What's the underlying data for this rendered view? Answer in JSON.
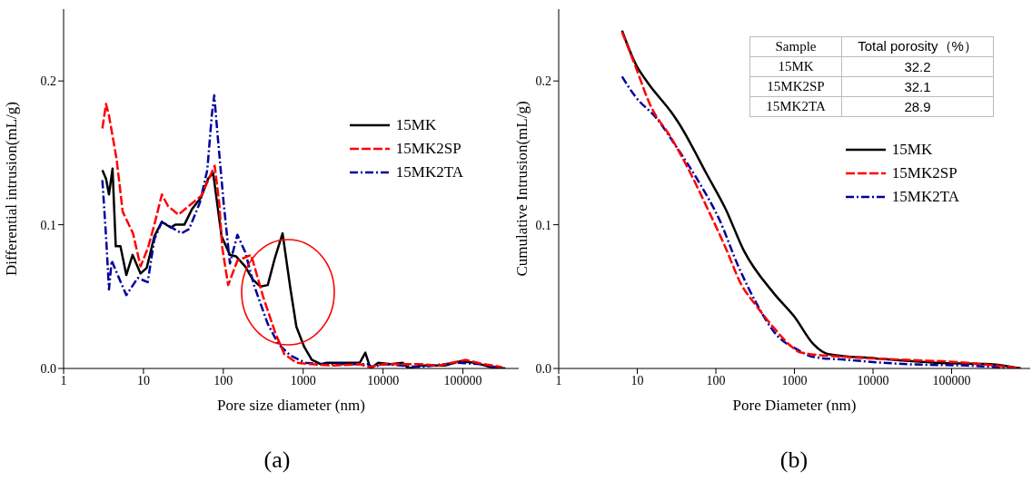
{
  "chart_data": [
    {
      "type": "line",
      "title": "(a)",
      "xlabel": "Pore size diameter (nm)",
      "ylabel": "Differential intrusion(mL/g)",
      "log": "x",
      "xlim": [
        1,
        500000
      ],
      "xticks": [
        1,
        10,
        100,
        1000,
        10000,
        100000
      ],
      "ylim": [
        0,
        0.25
      ],
      "yticks": [
        {
          "value": 0,
          "label": "0.0"
        },
        {
          "value": 0.1,
          "label": "0.1"
        },
        {
          "value": 0.2,
          "label": "0.2"
        }
      ],
      "legend": "top right",
      "series": [
        {
          "name": "15MK",
          "color": "#000000",
          "line_style": "solid",
          "x": [
            3.06,
            3.4,
            3.7,
            4.1,
            4.5,
            5.15,
            6.1,
            7.3,
            9.2,
            11,
            13.7,
            17,
            22,
            25,
            32.5,
            40.7,
            52.7,
            64.6,
            74.6,
            95,
            121,
            144,
            188,
            233,
            290,
            360,
            443,
            552,
            690,
            822,
            1030,
            1280,
            1660,
            1980,
            3050,
            3960,
            5120,
            6000,
            6950,
            8700,
            12400,
            17600,
            20800,
            29300,
            59500,
            92000,
            142000,
            218000,
            340000
          ],
          "values": [
            0.138,
            0.132,
            0.121,
            0.139,
            0.085,
            0.085,
            0.065,
            0.079,
            0.066,
            0.07,
            0.092,
            0.102,
            0.098,
            0.1,
            0.1,
            0.111,
            0.119,
            0.132,
            0.136,
            0.092,
            0.079,
            0.078,
            0.071,
            0.062,
            0.057,
            0.058,
            0.077,
            0.094,
            0.056,
            0.029,
            0.015,
            0.006,
            0.003,
            0.004,
            0.004,
            0.004,
            0.004,
            0.011,
            0,
            0.004,
            0.003,
            0.004,
            0,
            0.002,
            0.002,
            0.005,
            0.004,
            0.001,
            0
          ]
        },
        {
          "name": "15MK2SP",
          "color": "#ff0000",
          "line_style": "dashed",
          "x": [
            3.06,
            3.4,
            3.7,
            4.6,
            5.5,
            7.4,
            9.2,
            11.4,
            13.7,
            17,
            20.3,
            27.4,
            38.8,
            52.7,
            78,
            89,
            97,
            115,
            150,
            223,
            315,
            446,
            580,
            822,
            1280,
            2350,
            5120,
            6650,
            10300,
            29300,
            49600,
            108000,
            180000,
            310000
          ],
          "values": [
            0.167,
            0.184,
            0.176,
            0.146,
            0.109,
            0.094,
            0.071,
            0.084,
            0.1,
            0.121,
            0.113,
            0.107,
            0.114,
            0.12,
            0.141,
            0.115,
            0.084,
            0.058,
            0.075,
            0.079,
            0.05,
            0.025,
            0.01,
            0.004,
            0.003,
            0.002,
            0.003,
            0.001,
            0.003,
            0.003,
            0.002,
            0.006,
            0.003,
            0.001
          ]
        },
        {
          "name": "15MK2TA",
          "color": "#00009c",
          "line_style": "dashdot",
          "x": [
            3.06,
            3.4,
            3.7,
            4,
            4.6,
            6.1,
            8.5,
            11.3,
            13.7,
            17,
            30,
            37.3,
            50.6,
            63,
            71.7,
            77,
            84,
            101,
            121,
            150,
            188,
            242,
            360,
            490,
            690,
            1070,
            1660,
            3600,
            6400,
            7300,
            10300,
            29300,
            83000,
            167000,
            310000
          ],
          "values": [
            0.131,
            0.092,
            0.055,
            0.075,
            0.067,
            0.051,
            0.063,
            0.06,
            0.09,
            0.102,
            0.094,
            0.097,
            0.115,
            0.138,
            0.176,
            0.19,
            0.165,
            0.115,
            0.073,
            0.093,
            0.081,
            0.058,
            0.031,
            0.017,
            0.009,
            0.004,
            0.003,
            0.003,
            0.003,
            0.001,
            0.003,
            0.001,
            0.004,
            0.003,
            0
          ]
        }
      ]
    },
    {
      "type": "line",
      "title": "(b)",
      "xlabel": "Pore Diameter (nm)",
      "ylabel": "Cumulative Intrusion(mL/g)",
      "log": "x",
      "xlim": [
        1,
        1000000
      ],
      "xticks": [
        1,
        10,
        100,
        1000,
        10000,
        100000
      ],
      "ylim": [
        0,
        0.25
      ],
      "yticks": [
        {
          "value": 0,
          "label": "0.0"
        },
        {
          "value": 0.1,
          "label": "0.1"
        },
        {
          "value": 0.2,
          "label": "0.2"
        }
      ],
      "legend": "right",
      "annotations": [
        "Sample",
        "Total porosity（%）",
        "15MK",
        "32.2",
        "15MK2SP",
        "32.1",
        "15MK2TA",
        "28.9"
      ],
      "series": [
        {
          "name": "15MK",
          "color": "#000000",
          "line_style": "solid",
          "x": [
            6.4,
            9.5,
            13.5,
            27.3,
            32.5,
            78.7,
            133,
            227,
            552,
            1000,
            1740,
            2700,
            10900,
            63000,
            310000,
            760000
          ],
          "values": [
            0.235,
            0.212,
            0.199,
            0.178,
            0.172,
            0.134,
            0.111,
            0.082,
            0.052,
            0.036,
            0.017,
            0.01,
            0.007,
            0.004,
            0.003,
            0
          ]
        },
        {
          "name": "15MK2SP",
          "color": "#ff0000",
          "line_style": "dashed",
          "x": [
            6.4,
            9.5,
            14.7,
            27.3,
            42.5,
            78.7,
            133,
            208,
            323,
            552,
            930,
            1210,
            4530,
            26600,
            156000,
            370000,
            760000
          ],
          "values": [
            0.234,
            0.21,
            0.183,
            0.16,
            0.141,
            0.111,
            0.084,
            0.059,
            0.044,
            0.028,
            0.015,
            0.011,
            0.008,
            0.006,
            0.004,
            0.002,
            0
          ]
        },
        {
          "name": "15MK2TA",
          "color": "#00009c",
          "line_style": "dashdot",
          "x": [
            6.4,
            9.5,
            17.6,
            32.5,
            60.4,
            112,
            190,
            323,
            600,
            1100,
            1740,
            4530,
            26600,
            156000,
            760000
          ],
          "values": [
            0.203,
            0.189,
            0.174,
            0.153,
            0.13,
            0.103,
            0.072,
            0.046,
            0.023,
            0.013,
            0.008,
            0.006,
            0.003,
            0.002,
            0
          ]
        }
      ]
    }
  ]
}
